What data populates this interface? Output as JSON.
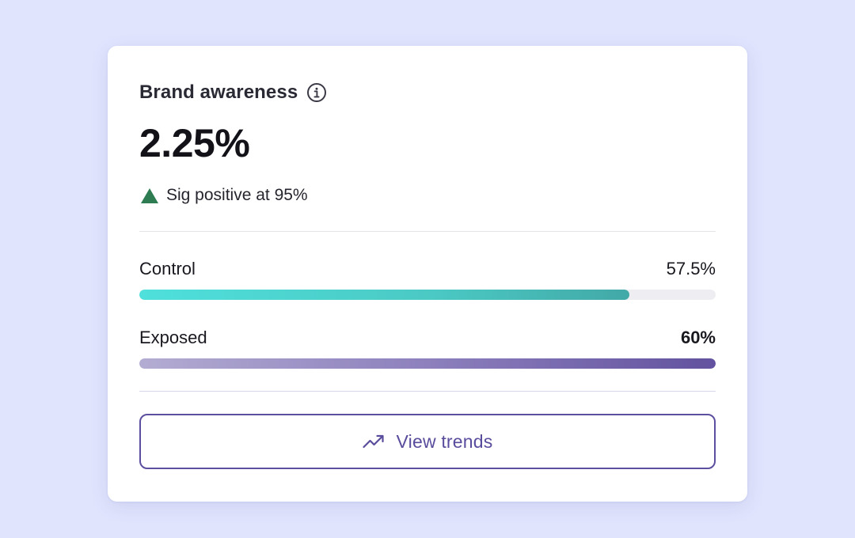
{
  "card": {
    "title": "Brand awareness",
    "metric_value": "2.25%",
    "significance": {
      "text": "Sig positive at 95%",
      "icon": "triangle-up-icon",
      "color": "#2e7d52"
    }
  },
  "bars": {
    "control": {
      "label": "Control",
      "value_text": "57.5%",
      "fill_fraction": 0.85,
      "color": "#4fd3cf"
    },
    "exposed": {
      "label": "Exposed",
      "value_text": "60%",
      "fill_fraction": 1.0,
      "color": "#62529f"
    }
  },
  "button": {
    "label": "View trends",
    "icon": "trending-up-icon",
    "color": "#5c4fa0"
  },
  "colors": {
    "background": "#e0e4fd",
    "card": "#ffffff"
  }
}
